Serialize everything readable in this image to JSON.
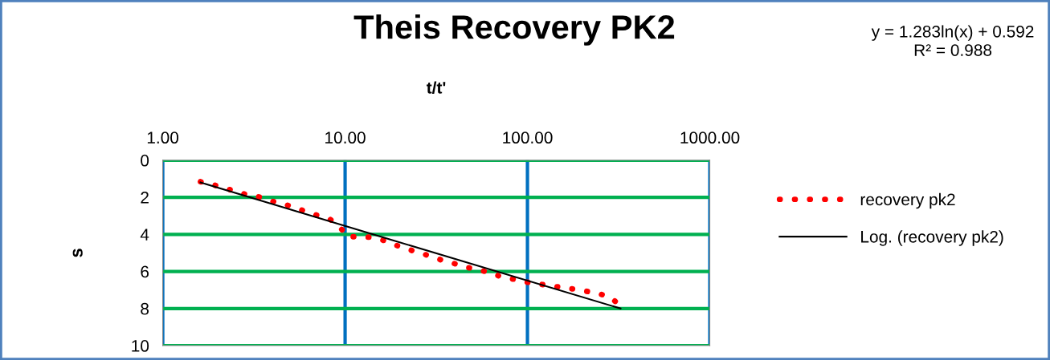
{
  "chart_data": {
    "type": "line",
    "title": "Theis Recovery PK2",
    "xlabel": "t/t'",
    "ylabel": "s",
    "annotations": [
      "y = 1.283ln(x) + 0.592\nR² = 0.988"
    ],
    "log": "x",
    "xlim": [
      1,
      1000
    ],
    "xticks": [
      {
        "value": 1,
        "label": "1.00"
      },
      {
        "value": 10,
        "label": "10.00"
      },
      {
        "value": 100,
        "label": "100.00"
      },
      {
        "value": 1000,
        "label": "1000.00"
      }
    ],
    "ylim": [
      10,
      0
    ],
    "yticks": [
      0,
      2,
      4,
      6,
      8,
      10
    ],
    "grid": true,
    "legend": "right",
    "series": [
      {
        "name": "recovery pk2",
        "color": "#ff0000",
        "line_style": "dotted",
        "x": [
          1.61,
          1.87,
          2.17,
          2.53,
          2.93,
          3.41,
          3.97,
          4.6,
          5.36,
          6.18,
          7.17,
          8.3,
          9.37,
          10.3,
          12.0,
          14.1,
          16.3,
          18.9,
          21.9,
          25.4,
          29.4,
          34.1,
          39.6,
          46.0,
          53.6,
          62.2,
          72.1,
          84.1,
          97.9,
          114,
          133,
          155,
          182,
          211,
          247,
          286,
          324
        ],
        "values": [
          1.16,
          1.31,
          1.5,
          1.69,
          1.88,
          1.99,
          2.21,
          2.37,
          2.57,
          2.8,
          3.0,
          3.2,
          3.61,
          4.13,
          4.13,
          4.16,
          4.33,
          4.58,
          4.78,
          5.0,
          5.17,
          5.4,
          5.57,
          5.77,
          5.9,
          6.07,
          6.29,
          6.42,
          6.57,
          6.67,
          6.77,
          6.87,
          6.96,
          7.07,
          7.2,
          7.4,
          7.87
        ]
      },
      {
        "name": "Log. (recovery pk2)",
        "color": "#000000",
        "line_style": "solid",
        "x": [
          1.61,
          18.0,
          324
        ],
        "values": [
          1.2,
          4.3,
          8.0
        ]
      }
    ]
  }
}
